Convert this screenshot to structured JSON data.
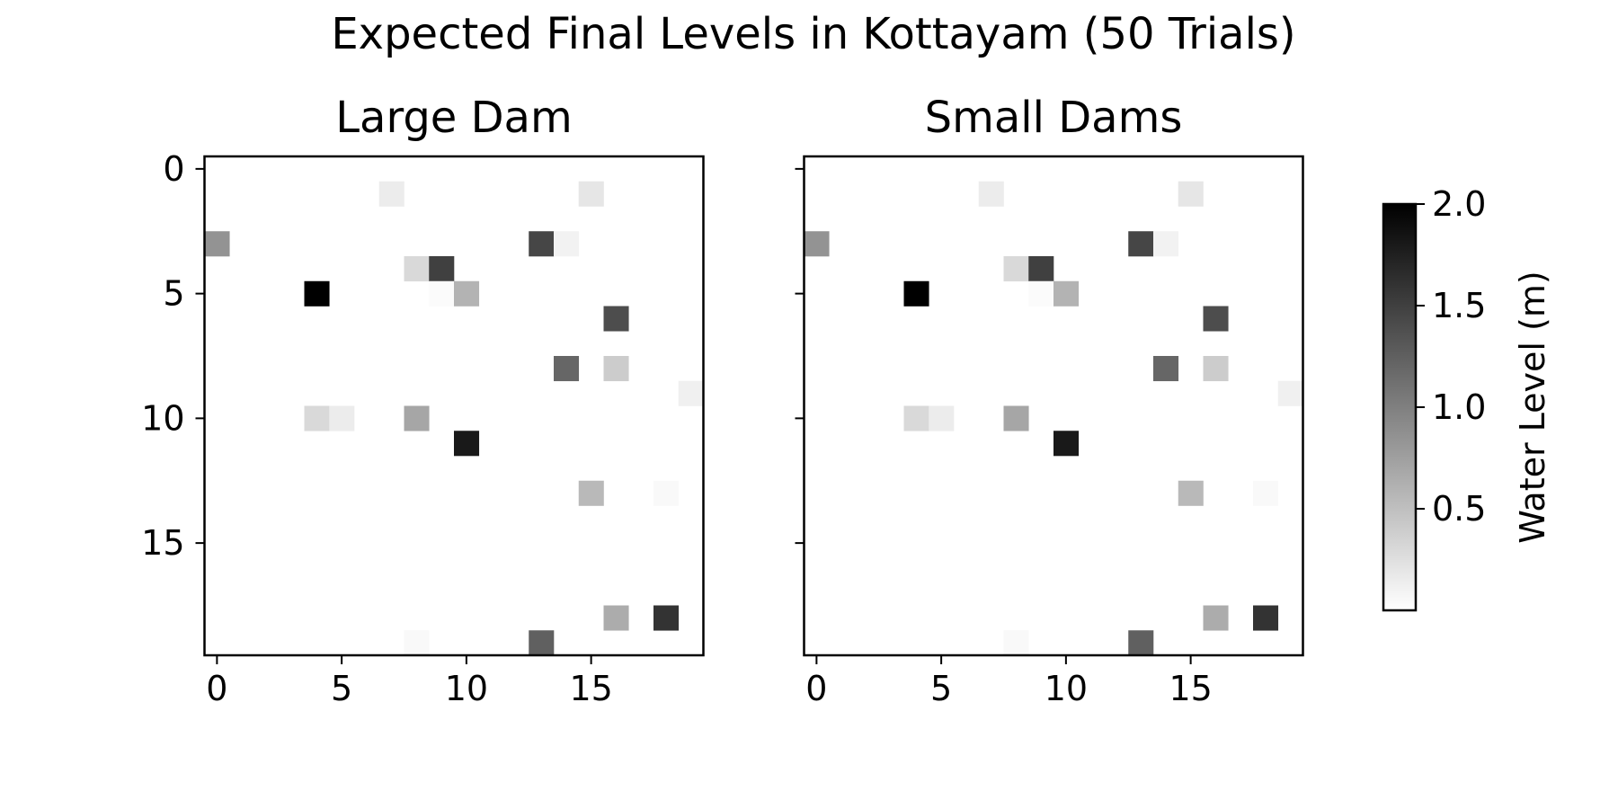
{
  "chart_data": {
    "type": "heatmap",
    "title": "Expected Final Levels in Kottayam (50 Trials)",
    "colormap": "greys",
    "panels": [
      {
        "title": "Large Dam",
        "grid_shape": [
          20,
          20
        ],
        "xticks": [
          "0",
          "5",
          "10",
          "15"
        ],
        "yticks": [
          "0",
          "5",
          "10",
          "15"
        ],
        "cells": [
          {
            "row": 1,
            "col": 7,
            "value": 0.15
          },
          {
            "row": 1,
            "col": 15,
            "value": 0.2
          },
          {
            "row": 3,
            "col": 0,
            "value": 0.85
          },
          {
            "row": 3,
            "col": 13,
            "value": 1.45
          },
          {
            "row": 3,
            "col": 14,
            "value": 0.1
          },
          {
            "row": 4,
            "col": 8,
            "value": 0.3
          },
          {
            "row": 4,
            "col": 9,
            "value": 1.5
          },
          {
            "row": 5,
            "col": 4,
            "value": 2.0
          },
          {
            "row": 5,
            "col": 9,
            "value": 0.03
          },
          {
            "row": 5,
            "col": 10,
            "value": 0.6
          },
          {
            "row": 6,
            "col": 16,
            "value": 1.4
          },
          {
            "row": 8,
            "col": 14,
            "value": 1.2
          },
          {
            "row": 8,
            "col": 16,
            "value": 0.4
          },
          {
            "row": 9,
            "col": 19,
            "value": 0.12
          },
          {
            "row": 10,
            "col": 4,
            "value": 0.3
          },
          {
            "row": 10,
            "col": 5,
            "value": 0.15
          },
          {
            "row": 10,
            "col": 8,
            "value": 0.7
          },
          {
            "row": 11,
            "col": 10,
            "value": 1.8
          },
          {
            "row": 13,
            "col": 15,
            "value": 0.55
          },
          {
            "row": 13,
            "col": 18,
            "value": 0.05
          },
          {
            "row": 18,
            "col": 16,
            "value": 0.65
          },
          {
            "row": 18,
            "col": 18,
            "value": 1.6
          },
          {
            "row": 19,
            "col": 8,
            "value": 0.05
          },
          {
            "row": 19,
            "col": 13,
            "value": 1.25
          }
        ]
      },
      {
        "title": "Small Dams",
        "grid_shape": [
          20,
          20
        ],
        "xticks": [
          "0",
          "5",
          "10",
          "15"
        ],
        "yticks": [],
        "cells": [
          {
            "row": 1,
            "col": 7,
            "value": 0.15
          },
          {
            "row": 1,
            "col": 15,
            "value": 0.2
          },
          {
            "row": 3,
            "col": 0,
            "value": 0.85
          },
          {
            "row": 3,
            "col": 13,
            "value": 1.45
          },
          {
            "row": 3,
            "col": 14,
            "value": 0.1
          },
          {
            "row": 4,
            "col": 8,
            "value": 0.3
          },
          {
            "row": 4,
            "col": 9,
            "value": 1.5
          },
          {
            "row": 5,
            "col": 4,
            "value": 2.0
          },
          {
            "row": 5,
            "col": 9,
            "value": 0.03
          },
          {
            "row": 5,
            "col": 10,
            "value": 0.6
          },
          {
            "row": 6,
            "col": 16,
            "value": 1.4
          },
          {
            "row": 8,
            "col": 14,
            "value": 1.2
          },
          {
            "row": 8,
            "col": 16,
            "value": 0.4
          },
          {
            "row": 9,
            "col": 19,
            "value": 0.12
          },
          {
            "row": 10,
            "col": 4,
            "value": 0.3
          },
          {
            "row": 10,
            "col": 5,
            "value": 0.15
          },
          {
            "row": 10,
            "col": 8,
            "value": 0.7
          },
          {
            "row": 11,
            "col": 10,
            "value": 1.8
          },
          {
            "row": 13,
            "col": 15,
            "value": 0.55
          },
          {
            "row": 13,
            "col": 18,
            "value": 0.05
          },
          {
            "row": 18,
            "col": 16,
            "value": 0.65
          },
          {
            "row": 18,
            "col": 18,
            "value": 1.6
          },
          {
            "row": 19,
            "col": 8,
            "value": 0.05
          },
          {
            "row": 19,
            "col": 13,
            "value": 1.25
          }
        ]
      }
    ],
    "colorbar": {
      "label": "Water Level (m)",
      "range": [
        0,
        2.0
      ],
      "ticks": [
        "2.0",
        "1.5",
        "1.0",
        "0.5"
      ],
      "tick_values": [
        2.0,
        1.5,
        1.0,
        0.5
      ]
    }
  }
}
